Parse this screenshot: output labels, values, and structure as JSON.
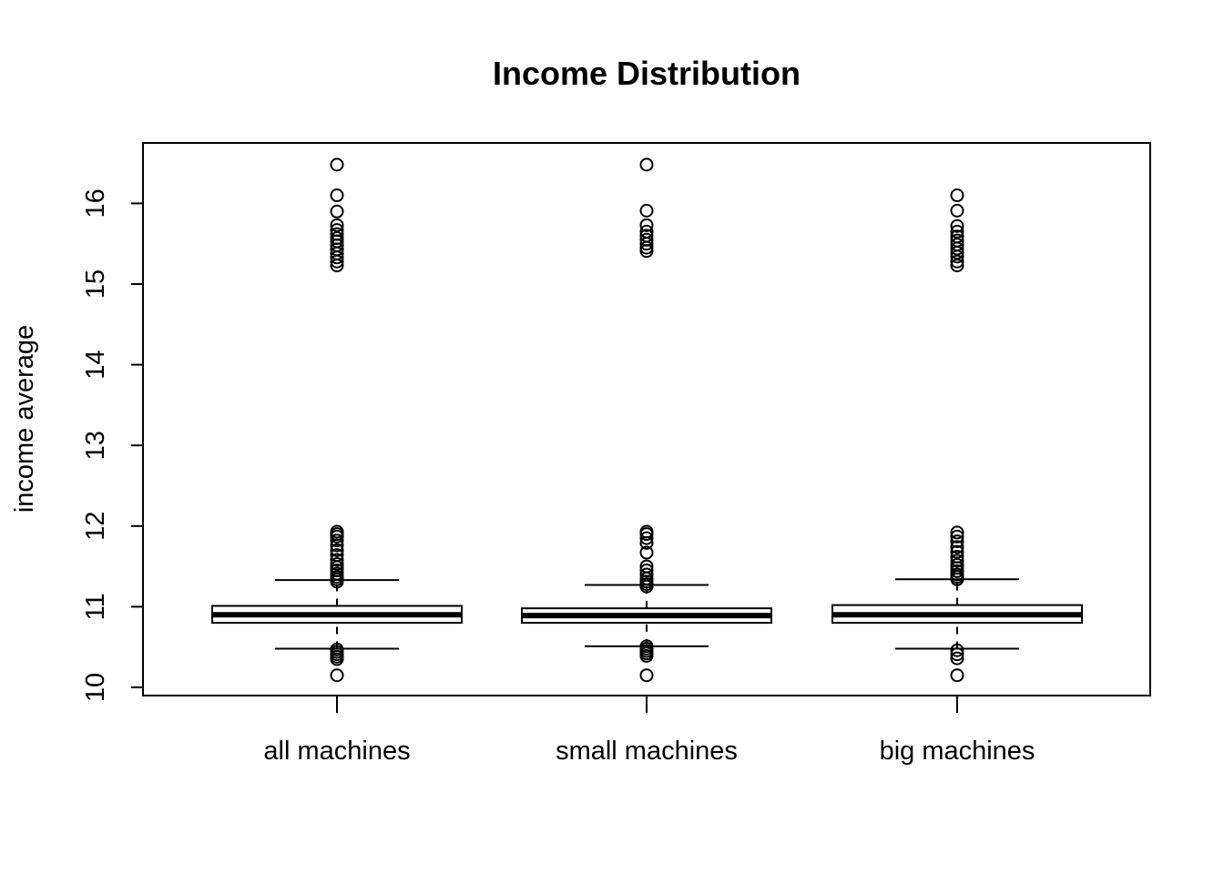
{
  "chart_data": {
    "type": "boxplot",
    "title": "Income Distribution",
    "xlabel": "",
    "ylabel": "income average",
    "ylim": [
      9.9,
      16.75
    ],
    "yticks": [
      10,
      11,
      12,
      13,
      14,
      15,
      16
    ],
    "grid": false,
    "categories": [
      "all machines",
      "small machines",
      "big machines"
    ],
    "boxes": [
      {
        "label": "all machines",
        "whisker_low": 10.48,
        "q1": 10.8,
        "median": 10.9,
        "q3": 11.01,
        "whisker_high": 11.33,
        "outliers": [
          10.15,
          10.35,
          10.38,
          10.41,
          10.44,
          10.47,
          11.31,
          11.34,
          11.37,
          11.41,
          11.45,
          11.49,
          11.53,
          11.58,
          11.64,
          11.7,
          11.76,
          11.82,
          11.87,
          11.9,
          11.93,
          15.23,
          15.28,
          15.33,
          15.38,
          15.43,
          15.48,
          15.53,
          15.57,
          15.62,
          15.67,
          15.73,
          15.9,
          16.1,
          16.48
        ]
      },
      {
        "label": "small machines",
        "whisker_low": 10.51,
        "q1": 10.8,
        "median": 10.89,
        "q3": 10.98,
        "whisker_high": 11.27,
        "outliers": [
          10.15,
          10.39,
          10.42,
          10.45,
          10.48,
          10.51,
          11.25,
          11.28,
          11.31,
          11.35,
          11.4,
          11.45,
          11.5,
          11.67,
          11.79,
          11.85,
          11.9,
          11.93,
          15.41,
          15.45,
          15.5,
          15.55,
          15.6,
          15.65,
          15.73,
          15.91,
          16.48
        ]
      },
      {
        "label": "big machines",
        "whisker_low": 10.48,
        "q1": 10.8,
        "median": 10.9,
        "q3": 11.02,
        "whisker_high": 11.34,
        "outliers": [
          10.15,
          10.36,
          10.41,
          10.46,
          11.34,
          11.37,
          11.4,
          11.44,
          11.48,
          11.52,
          11.57,
          11.62,
          11.68,
          11.74,
          11.81,
          11.87,
          11.92,
          15.23,
          15.28,
          15.34,
          15.39,
          15.44,
          15.49,
          15.54,
          15.59,
          15.65,
          15.72,
          15.91,
          16.1
        ]
      }
    ]
  }
}
